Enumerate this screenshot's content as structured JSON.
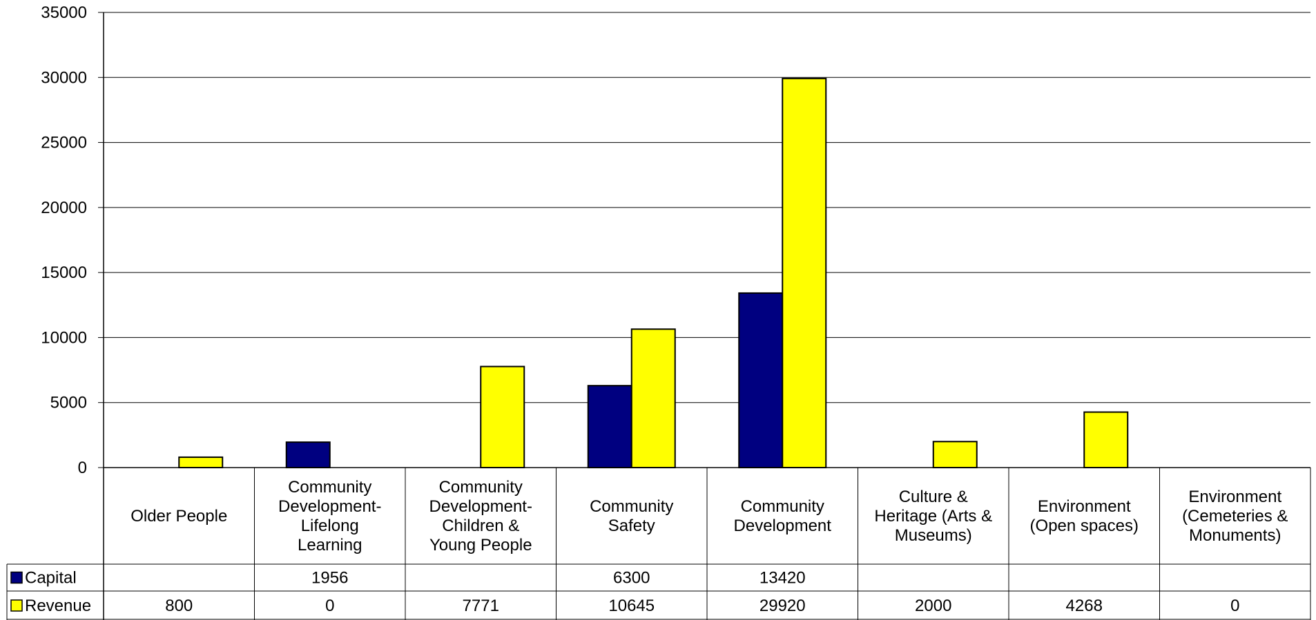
{
  "chart_data": {
    "type": "bar",
    "categories": [
      "Older People",
      "Community Development- Lifelong Learning",
      "Community Development- Children & Young People",
      "Community Safety",
      "Community Development",
      "Culture & Heritage (Arts & Museums)",
      "Environment (Open spaces)",
      "Environment (Cemeteries & Monuments)"
    ],
    "category_lines": [
      [
        "Older People"
      ],
      [
        "Community",
        "Development-",
        "Lifelong",
        "Learning"
      ],
      [
        "Community",
        "Development-",
        "Children &",
        "Young People"
      ],
      [
        "Community",
        "Safety"
      ],
      [
        "Community",
        "Development"
      ],
      [
        "Culture &",
        "Heritage (Arts &",
        "Museums)"
      ],
      [
        "Environment",
        "(Open spaces)"
      ],
      [
        "Environment",
        "(Cemeteries &",
        "Monuments)"
      ]
    ],
    "series": [
      {
        "name": "Capital",
        "color": "#000080",
        "values": [
          null,
          1956,
          null,
          6300,
          13420,
          null,
          null,
          null
        ],
        "table_values": [
          "",
          "1956",
          "",
          "6300",
          "13420",
          "",
          "",
          ""
        ]
      },
      {
        "name": "Revenue",
        "color": "#FFFF00",
        "values": [
          800,
          0,
          7771,
          10645,
          29920,
          2000,
          4268,
          0
        ],
        "table_values": [
          "800",
          "0",
          "7771",
          "10645",
          "29920",
          "2000",
          "4268",
          "0"
        ]
      }
    ],
    "ylim": [
      0,
      35000
    ],
    "yticks": [
      0,
      5000,
      10000,
      15000,
      20000,
      25000,
      30000,
      35000
    ],
    "grid": true,
    "legend": "data-table",
    "title": "",
    "xlabel": "",
    "ylabel": ""
  }
}
